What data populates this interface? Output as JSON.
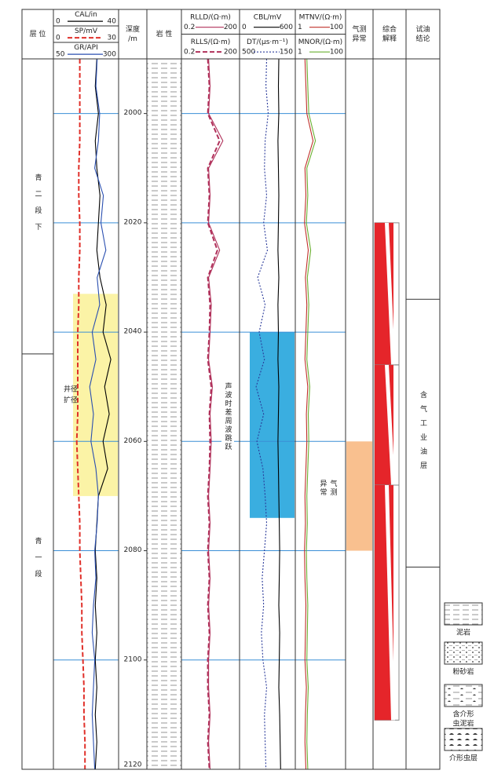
{
  "chart_data": {
    "type": "well-log",
    "headers": {
      "layer": "层 位",
      "depth": [
        "深度",
        "/m"
      ],
      "lithology": "岩 性",
      "gas": [
        "气测",
        "异常"
      ],
      "interpretation": [
        "综合",
        "解释"
      ],
      "test": [
        "试油",
        "结论"
      ]
    },
    "ylim": [
      1990,
      2120
    ],
    "yticks": [
      2000,
      2020,
      2040,
      2060,
      2080,
      2100,
      2120
    ],
    "depths": [
      1990,
      1995,
      2000,
      2005,
      2010,
      2015,
      2020,
      2025,
      2030,
      2035,
      2040,
      2045,
      2050,
      2055,
      2060,
      2065,
      2070,
      2075,
      2080,
      2085,
      2090,
      2095,
      2100,
      2105,
      2110,
      2115,
      2120
    ],
    "curves": [
      {
        "name": "CAL/in",
        "xlim": [
          0,
          40
        ],
        "color": "#000000",
        "style": "solid",
        "values": [
          27,
          26,
          28,
          26,
          27,
          29,
          28,
          27,
          29,
          33,
          31,
          36,
          32,
          35,
          31,
          34,
          28,
          27,
          26,
          27,
          26,
          27,
          26,
          27,
          26,
          27,
          26
        ]
      },
      {
        "name": "SP/mV",
        "xlim": [
          0,
          30
        ],
        "color": "#e0302a",
        "style": "dashed",
        "values": [
          12,
          12,
          12,
          12,
          11.5,
          11.5,
          12,
          12,
          11.5,
          11.5,
          11,
          11,
          11,
          11,
          10.5,
          11,
          11.5,
          12,
          12,
          12.5,
          13,
          13,
          13.5,
          14,
          14,
          14.5,
          14.5
        ]
      },
      {
        "name": "GR/API",
        "xlim": [
          50,
          300
        ],
        "color": "#2a4fb0",
        "style": "solid",
        "values": [
          220,
          215,
          230,
          225,
          210,
          245,
          235,
          255,
          220,
          230,
          200,
          215,
          190,
          205,
          195,
          215,
          225,
          220,
          210,
          215,
          205,
          200,
          210,
          205,
          200,
          205,
          210
        ]
      },
      {
        "name": "RLLD/(Ω·m)",
        "xlim": [
          0.2,
          200
        ],
        "log": true,
        "color": "#b0305a",
        "style": "solid",
        "values": [
          5,
          6,
          5,
          30,
          5,
          6,
          5,
          20,
          5,
          7,
          6,
          5,
          8,
          6,
          7,
          6,
          5,
          6,
          5,
          6,
          5,
          6,
          5,
          5,
          6,
          5,
          6
        ]
      },
      {
        "name": "RLLS/(Ω·m)",
        "xlim": [
          0.2,
          200
        ],
        "log": true,
        "color": "#b0305a",
        "style": "dashed",
        "values": [
          4.5,
          5.5,
          4.5,
          20,
          4.5,
          5.5,
          4.5,
          15,
          4.5,
          6,
          5.5,
          4.5,
          7,
          5.5,
          6,
          5.5,
          4.5,
          5.5,
          4.5,
          5.5,
          4.5,
          5.5,
          4.5,
          4.5,
          5.5,
          4.5,
          5.5
        ]
      },
      {
        "name": "CBL/mV",
        "xlim": [
          0,
          600
        ],
        "color": "#000000",
        "style": "solid",
        "values": [
          430,
          425,
          430,
          420,
          425,
          430,
          425,
          420,
          430,
          420,
          425,
          420,
          430,
          425,
          420,
          425,
          430,
          435,
          440,
          435,
          430,
          440,
          435,
          430,
          440,
          445,
          450
        ]
      },
      {
        "name": "DT/(μs·m⁻¹)",
        "xlim": [
          500,
          150
        ],
        "color": "#2a3a9a",
        "style": "dotted",
        "values": [
          330,
          335,
          320,
          340,
          345,
          330,
          350,
          325,
          390,
          340,
          380,
          345,
          400,
          350,
          395,
          355,
          340,
          330,
          345,
          360,
          350,
          365,
          355,
          330,
          345,
          340,
          335
        ]
      },
      {
        "name": "MTNV/(Ω·m)",
        "xlim": [
          1,
          100
        ],
        "color": "#c0302a",
        "style": "solid",
        "values": [
          18,
          20,
          22,
          35,
          18,
          20,
          17,
          25,
          19,
          22,
          20,
          18,
          24,
          21,
          22,
          20,
          18,
          19,
          17,
          18,
          20,
          19,
          18,
          21,
          19,
          18,
          20
        ]
      },
      {
        "name": "MNOR/(Ω·m)",
        "xlim": [
          1,
          100
        ],
        "color": "#6ab030",
        "style": "solid",
        "values": [
          22,
          24,
          26,
          40,
          22,
          24,
          21,
          30,
          23,
          26,
          24,
          22,
          28,
          25,
          26,
          24,
          22,
          23,
          21,
          22,
          24,
          23,
          22,
          25,
          23,
          22,
          24
        ]
      }
    ],
    "layers": [
      {
        "name": "青二段下",
        "top": 1990,
        "bottom": 2044
      },
      {
        "name": "青一段",
        "top": 2044,
        "bottom": 2120
      }
    ],
    "hole_enlargement": {
      "label": [
        "井径",
        "扩径"
      ],
      "top": 2033,
      "bottom": 2070,
      "color": "#fbf3a6"
    },
    "cycle_skip": {
      "label": "声波时差周波跳跃",
      "top": 2040,
      "bottom": 2074,
      "color": "#3aaee0"
    },
    "gas_anomaly": {
      "label": [
        "气测",
        "异常"
      ],
      "top": 2060,
      "bottom": 2080,
      "color": "#f9c08f"
    },
    "interpretation": {
      "color": "#e5252a",
      "segments": [
        {
          "top": 2020,
          "bottom": 2046
        },
        {
          "top": 2046,
          "bottom": 2068
        },
        {
          "top": 2068,
          "bottom": 2111
        }
      ]
    },
    "test_result": {
      "label": "含气工业油层",
      "top": 2034,
      "bottom": 2083
    },
    "lithology_legend": [
      [
        "泥岩"
      ],
      [
        "粉砂岩"
      ],
      [
        "含介形",
        "虫泥岩"
      ],
      [
        "介形虫层"
      ]
    ]
  }
}
